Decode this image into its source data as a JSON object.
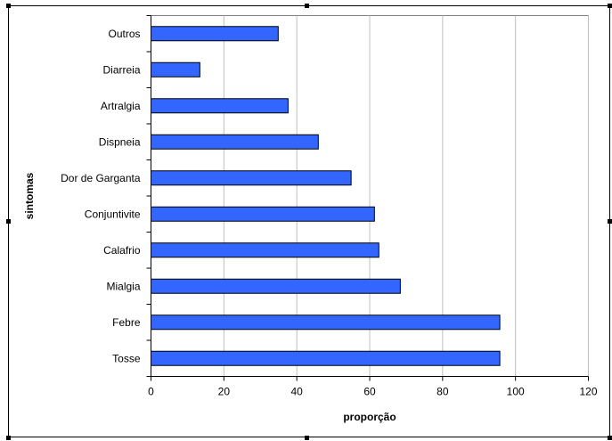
{
  "chart_data": {
    "type": "bar",
    "orientation": "horizontal",
    "categories": [
      "Tosse",
      "Febre",
      "Mialgia",
      "Calafrio",
      "Conjuntivite",
      "Dor de Garganta",
      "Dispneia",
      "Artralgia",
      "Diarreia",
      "Outros"
    ],
    "values": [
      95.7,
      95.7,
      68.4,
      62.5,
      61.3,
      54.9,
      45.9,
      37.6,
      13.4,
      34.9
    ],
    "xlabel": "proporção",
    "ylabel": "sintomas",
    "xlim": [
      0,
      120
    ],
    "xticks": [
      "0",
      "20",
      "40",
      "60",
      "80",
      "100",
      "120"
    ],
    "grid": "vertical",
    "legend": "none",
    "colors": {
      "bar": "#3366FF",
      "bar_border": "#000000",
      "grid": "#C0C0C0"
    }
  }
}
